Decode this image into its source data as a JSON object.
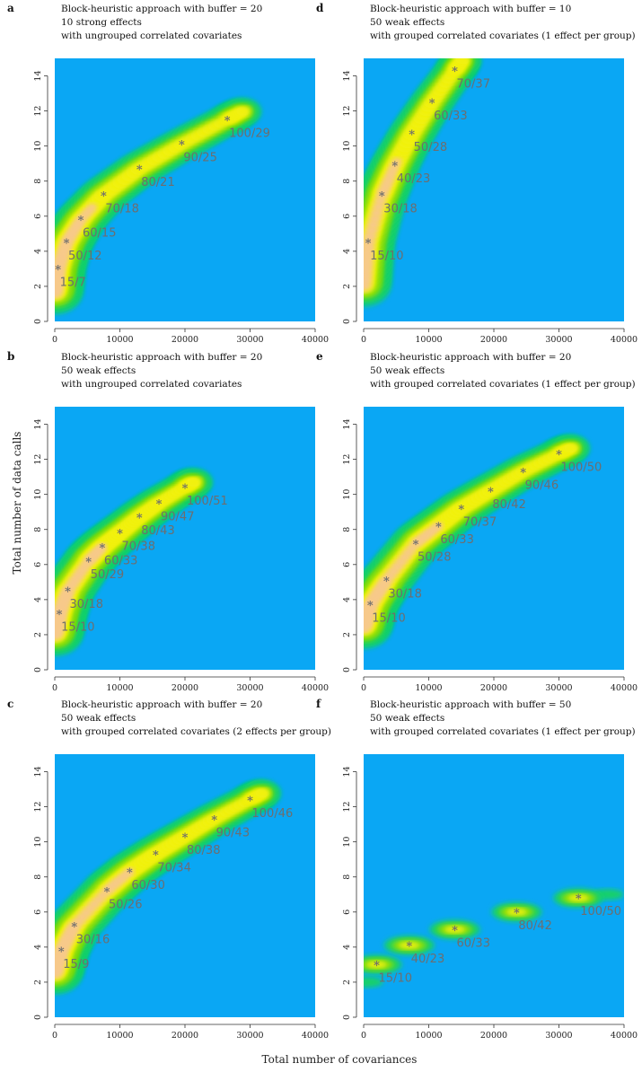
{
  "figure": {
    "ylabel": "Total number of data calls",
    "xlabel": "Total number of covariances"
  },
  "chart_data": [
    {
      "panel": "a",
      "type": "heatmap",
      "title_lines": [
        "Block-heuristic approach with buffer = 20",
        "10 strong effects",
        "with ungrouped correlated covariates"
      ],
      "xlim": [
        0,
        40000
      ],
      "ylim": [
        0,
        15
      ],
      "xticks": [
        0,
        10000,
        20000,
        30000,
        40000
      ],
      "yticks": [
        0,
        2,
        4,
        6,
        8,
        10,
        12,
        14
      ],
      "tick_labels_x": [
        "0",
        "10000",
        "20000",
        "30000",
        "40000"
      ],
      "tick_labels_y": [
        "0",
        "2",
        "4",
        "6",
        "8",
        "10",
        "12",
        "14"
      ],
      "colors": {
        "background": "#0aa7f4",
        "low": "#17d06a",
        "mid": "#7bdc11",
        "high": "#f1f110",
        "peak": "#f7c98a",
        "point": "#6e6e6e"
      },
      "points": [
        {
          "x": 500,
          "y": 3.0,
          "label": "15/7"
        },
        {
          "x": 1800,
          "y": 4.5,
          "label": "50/12"
        },
        {
          "x": 4000,
          "y": 5.8,
          "label": "60/15"
        },
        {
          "x": 7500,
          "y": 7.2,
          "label": "70/18"
        },
        {
          "x": 13000,
          "y": 8.7,
          "label": "80/21"
        },
        {
          "x": 19500,
          "y": 10.1,
          "label": "90/25"
        },
        {
          "x": 26500,
          "y": 11.5,
          "label": "100/29"
        }
      ]
    },
    {
      "panel": "b",
      "type": "heatmap",
      "title_lines": [
        "Block-heuristic approach with buffer = 20",
        "50 weak effects",
        "with ungrouped correlated covariates"
      ],
      "xlim": [
        0,
        40000
      ],
      "ylim": [
        0,
        15
      ],
      "xticks": [
        0,
        10000,
        20000,
        30000,
        40000
      ],
      "yticks": [
        0,
        2,
        4,
        6,
        8,
        10,
        12,
        14
      ],
      "tick_labels_x": [
        "0",
        "10000",
        "20000",
        "30000",
        "40000"
      ],
      "tick_labels_y": [
        "0",
        "2",
        "4",
        "6",
        "8",
        "10",
        "12",
        "14"
      ],
      "colors": {
        "background": "#0aa7f4",
        "low": "#17d06a",
        "mid": "#7bdc11",
        "high": "#f1f110",
        "peak": "#f7c98a",
        "point": "#6e6e6e"
      },
      "points": [
        {
          "x": 700,
          "y": 3.2,
          "label": "15/10"
        },
        {
          "x": 2000,
          "y": 4.5,
          "label": "30/18"
        },
        {
          "x": 5200,
          "y": 6.2,
          "label": "50/29"
        },
        {
          "x": 7300,
          "y": 7.0,
          "label": "60/33"
        },
        {
          "x": 10000,
          "y": 7.8,
          "label": "70/38"
        },
        {
          "x": 13000,
          "y": 8.7,
          "label": "80/43"
        },
        {
          "x": 16000,
          "y": 9.5,
          "label": "90/47"
        },
        {
          "x": 20000,
          "y": 10.4,
          "label": "100/51"
        }
      ]
    },
    {
      "panel": "c",
      "type": "heatmap",
      "title_lines": [
        "Block-heuristic approach with buffer = 20",
        "50 weak effects",
        "with grouped correlated covariates (2 effects per group)"
      ],
      "xlim": [
        0,
        40000
      ],
      "ylim": [
        0,
        15
      ],
      "xticks": [
        0,
        10000,
        20000,
        30000,
        40000
      ],
      "yticks": [
        0,
        2,
        4,
        6,
        8,
        10,
        12,
        14
      ],
      "tick_labels_x": [
        "0",
        "10000",
        "20000",
        "30000",
        "40000"
      ],
      "tick_labels_y": [
        "0",
        "2",
        "4",
        "6",
        "8",
        "10",
        "12",
        "14"
      ],
      "colors": {
        "background": "#0aa7f4",
        "low": "#17d06a",
        "mid": "#7bdc11",
        "high": "#f1f110",
        "peak": "#f7c98a",
        "point": "#6e6e6e"
      },
      "points": [
        {
          "x": 1000,
          "y": 3.8,
          "label": "15/9"
        },
        {
          "x": 3000,
          "y": 5.2,
          "label": "30/16"
        },
        {
          "x": 8000,
          "y": 7.2,
          "label": "50/26"
        },
        {
          "x": 11500,
          "y": 8.3,
          "label": "60/30"
        },
        {
          "x": 15500,
          "y": 9.3,
          "label": "70/34"
        },
        {
          "x": 20000,
          "y": 10.3,
          "label": "80/38"
        },
        {
          "x": 24500,
          "y": 11.3,
          "label": "90/43"
        },
        {
          "x": 30000,
          "y": 12.4,
          "label": "100/46"
        }
      ]
    },
    {
      "panel": "d",
      "type": "heatmap",
      "title_lines": [
        "Block-heuristic approach with buffer = 10",
        "50 weak effects",
        "with grouped correlated covariates (1 effect per group)"
      ],
      "xlim": [
        0,
        40000
      ],
      "ylim": [
        0,
        15
      ],
      "xticks": [
        0,
        10000,
        20000,
        30000,
        40000
      ],
      "yticks": [
        0,
        2,
        4,
        6,
        8,
        10,
        12,
        14
      ],
      "tick_labels_x": [
        "0",
        "10000",
        "20000",
        "30000",
        "40000"
      ],
      "tick_labels_y": [
        "0",
        "2",
        "4",
        "6",
        "8",
        "10",
        "12",
        "14"
      ],
      "colors": {
        "background": "#0aa7f4",
        "low": "#17d06a",
        "mid": "#7bdc11",
        "high": "#f1f110",
        "peak": "#f7c98a",
        "point": "#6e6e6e"
      },
      "points": [
        {
          "x": 700,
          "y": 4.5,
          "label": "15/10"
        },
        {
          "x": 2800,
          "y": 7.2,
          "label": "30/18"
        },
        {
          "x": 4800,
          "y": 8.9,
          "label": "40/23"
        },
        {
          "x": 7400,
          "y": 10.7,
          "label": "50/28"
        },
        {
          "x": 10500,
          "y": 12.5,
          "label": "60/33"
        },
        {
          "x": 14000,
          "y": 14.3,
          "label": "70/37"
        }
      ]
    },
    {
      "panel": "e",
      "type": "heatmap",
      "title_lines": [
        "Block-heuristic approach with buffer = 20",
        "50 weak effects",
        "with grouped correlated covariates (1 effect per group)"
      ],
      "xlim": [
        0,
        40000
      ],
      "ylim": [
        0,
        15
      ],
      "xticks": [
        0,
        10000,
        20000,
        30000,
        40000
      ],
      "yticks": [
        0,
        2,
        4,
        6,
        8,
        10,
        12,
        14
      ],
      "tick_labels_x": [
        "0",
        "10000",
        "20000",
        "30000",
        "40000"
      ],
      "tick_labels_y": [
        "0",
        "2",
        "4",
        "6",
        "8",
        "10",
        "12",
        "14"
      ],
      "colors": {
        "background": "#0aa7f4",
        "low": "#17d06a",
        "mid": "#7bdc11",
        "high": "#f1f110",
        "peak": "#f7c98a",
        "point": "#6e6e6e"
      },
      "points": [
        {
          "x": 1000,
          "y": 3.7,
          "label": "15/10"
        },
        {
          "x": 3500,
          "y": 5.1,
          "label": "30/18"
        },
        {
          "x": 8000,
          "y": 7.2,
          "label": "50/28"
        },
        {
          "x": 11500,
          "y": 8.2,
          "label": "60/33"
        },
        {
          "x": 15000,
          "y": 9.2,
          "label": "70/37"
        },
        {
          "x": 19500,
          "y": 10.2,
          "label": "80/42"
        },
        {
          "x": 24500,
          "y": 11.3,
          "label": "90/46"
        },
        {
          "x": 30000,
          "y": 12.3,
          "label": "100/50"
        }
      ]
    },
    {
      "panel": "f",
      "type": "heatmap",
      "title_lines": [
        "Block-heuristic approach with buffer = 50",
        "50 weak effects",
        "with grouped correlated covariates (1 effect per group)"
      ],
      "xlim": [
        0,
        40000
      ],
      "ylim": [
        0,
        15
      ],
      "xticks": [
        0,
        10000,
        20000,
        30000,
        40000
      ],
      "yticks": [
        0,
        2,
        4,
        6,
        8,
        10,
        12,
        14
      ],
      "tick_labels_x": [
        "0",
        "10000",
        "20000",
        "30000",
        "40000"
      ],
      "tick_labels_y": [
        "0",
        "2",
        "4",
        "6",
        "8",
        "10",
        "12",
        "14"
      ],
      "colors": {
        "background": "#0aa7f4",
        "low": "#17d06a",
        "mid": "#7bdc11",
        "high": "#f1f110",
        "peak": "#f7c98a",
        "point": "#6e6e6e"
      },
      "points": [
        {
          "x": 2000,
          "y": 3.0,
          "label": "15/10"
        },
        {
          "x": 7000,
          "y": 4.1,
          "label": "40/23"
        },
        {
          "x": 14000,
          "y": 5.0,
          "label": "60/33"
        },
        {
          "x": 23500,
          "y": 6.0,
          "label": "80/42"
        },
        {
          "x": 33000,
          "y": 6.8,
          "label": "100/50"
        }
      ],
      "extra_blobs": [
        {
          "x": 500,
          "y": 2.0
        },
        {
          "x": 37500,
          "y": 7.0
        }
      ]
    }
  ]
}
